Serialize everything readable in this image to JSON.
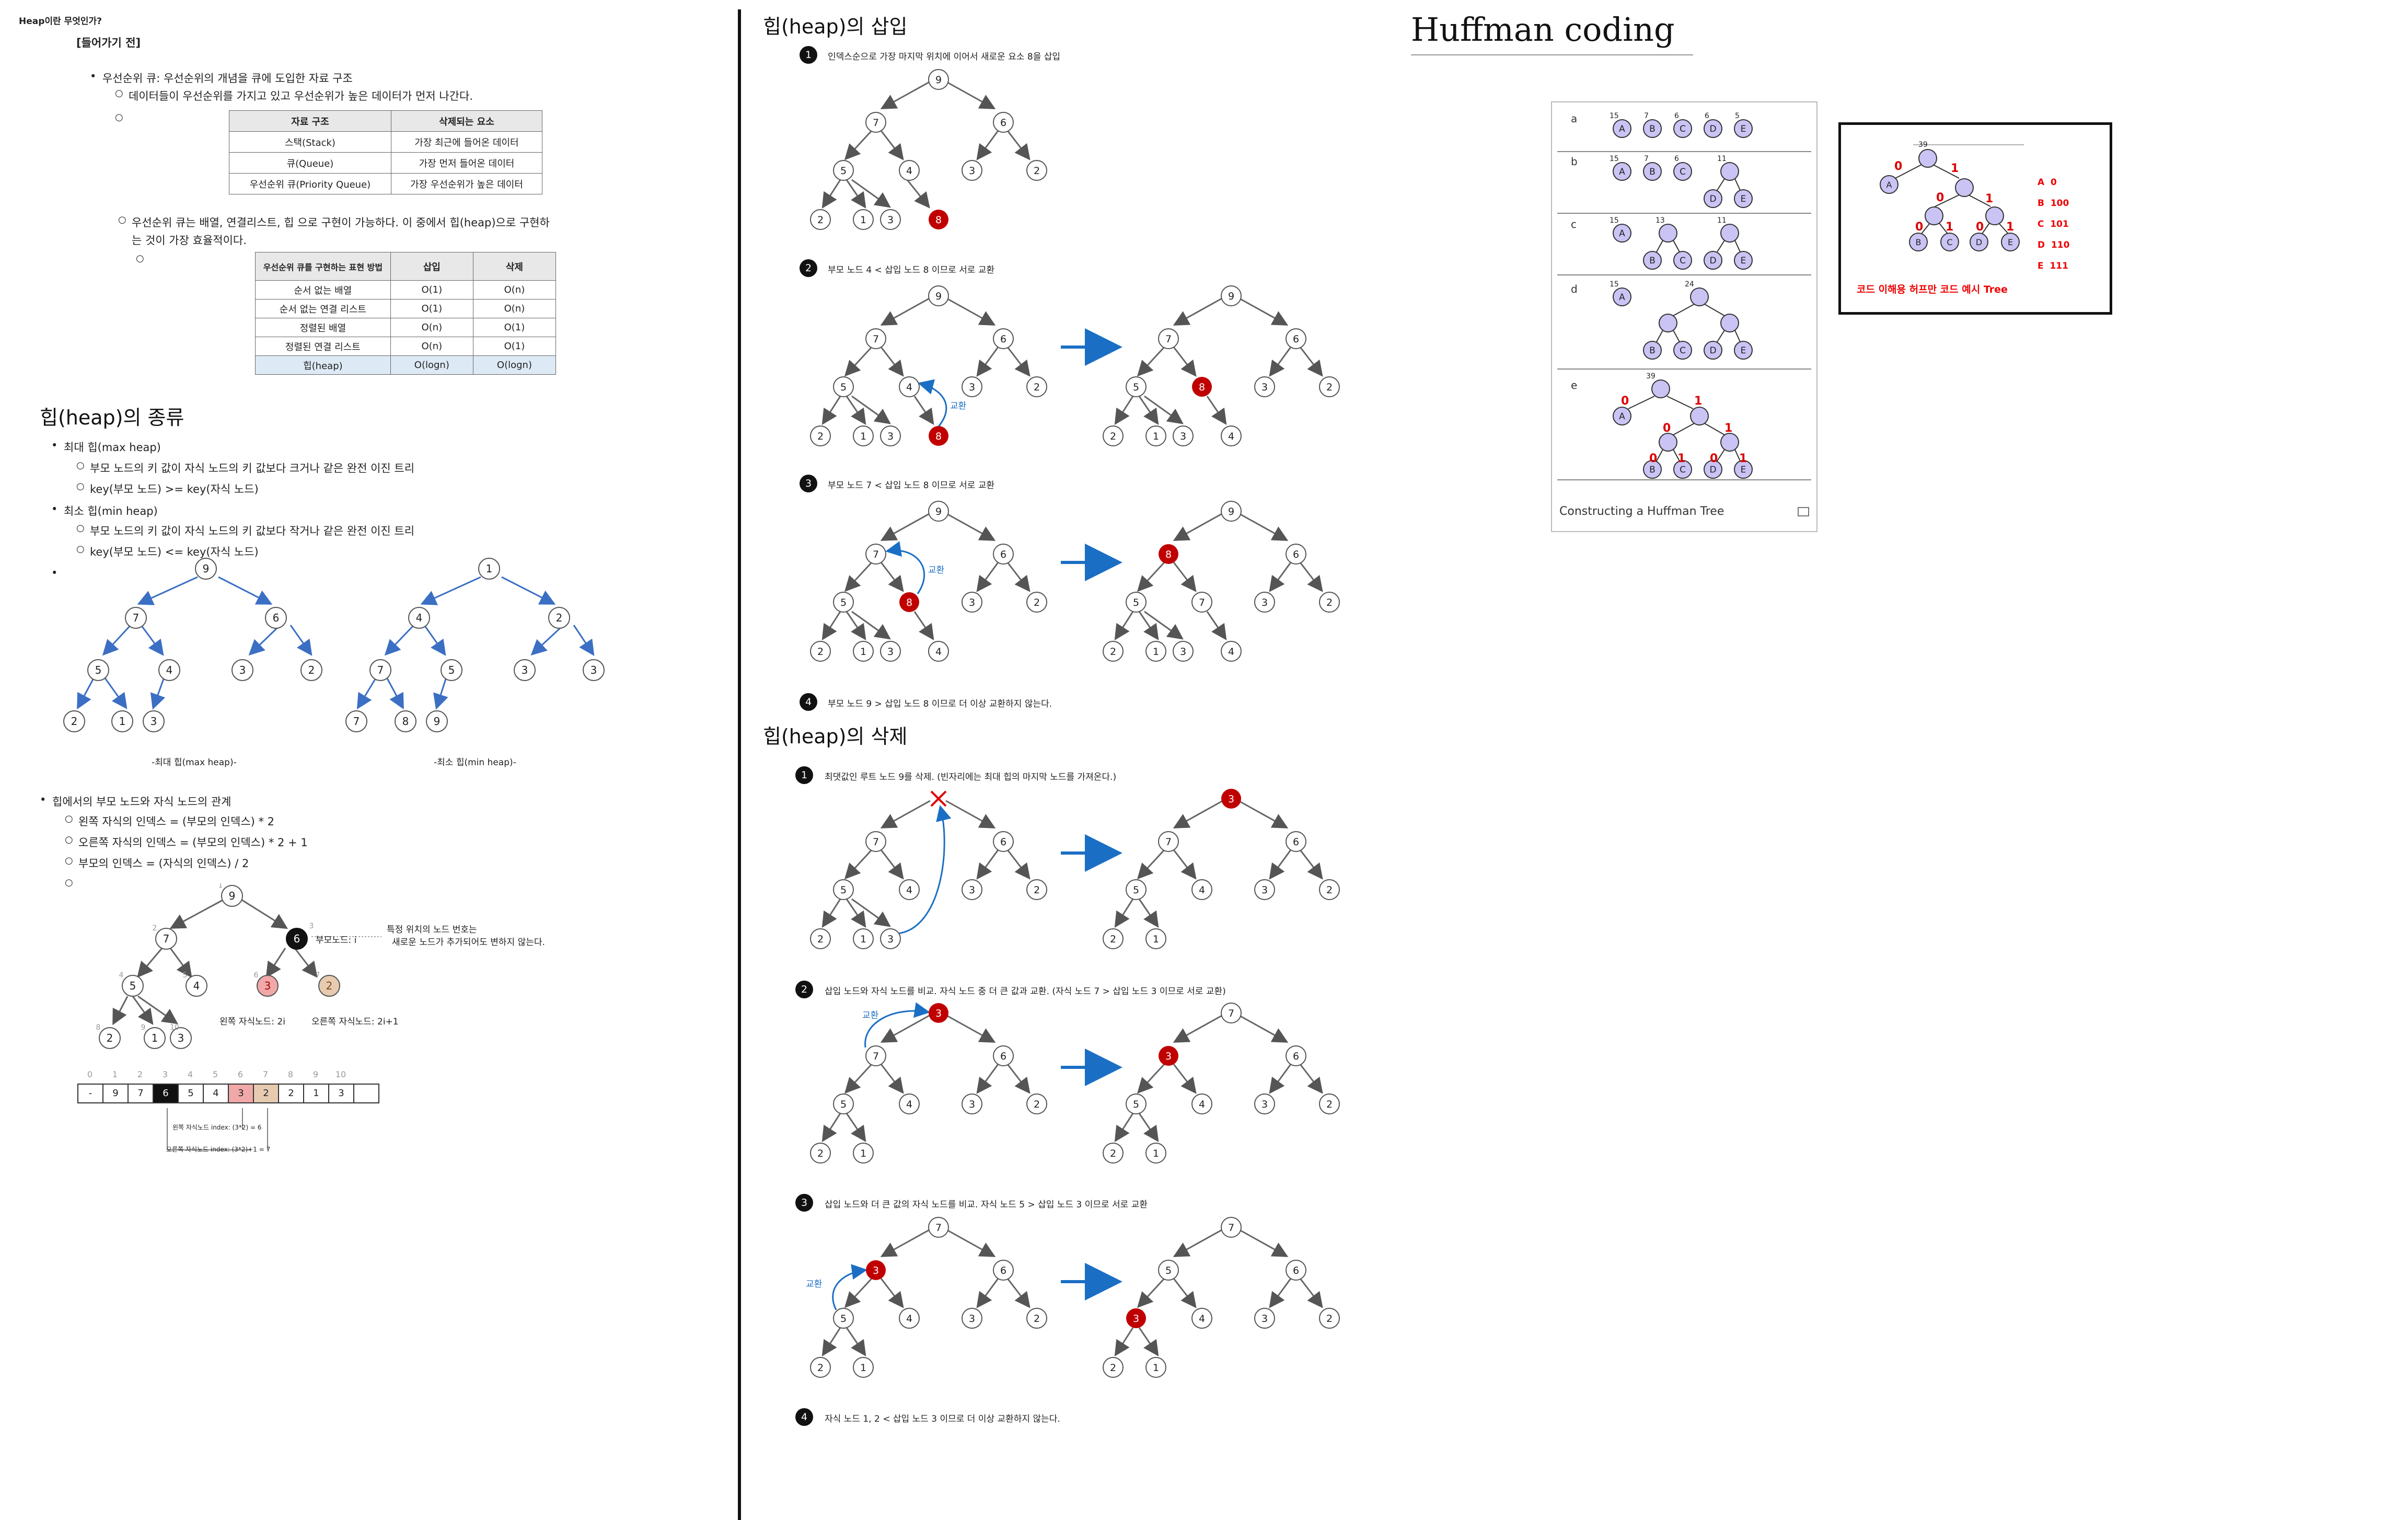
{
  "left": {
    "title": "Heap이란 무엇인가?",
    "intro_tag": "[들어가기 전]",
    "pq_def": "우선순위 큐: 우선순위의 개념을 큐에 도입한 자료 구조",
    "pq_sub": "데이터들이 우선순위를 가지고 있고 우선순위가 높은 데이터가 먼저 나간다.",
    "table1": {
      "headers": [
        "자료 구조",
        "삭제되는 요소"
      ],
      "rows": [
        [
          "스택(Stack)",
          "가장 최근에 들어온 데이터"
        ],
        [
          "큐(Queue)",
          "가장 먼저 들어온 데이터"
        ],
        [
          "우선순위 큐(Priority Queue)",
          "가장 우선순위가 높은 데이터"
        ]
      ]
    },
    "pq_impl_1": "우선순위 큐는 배열, 연결리스트, 힙 으로 구현이 가능하다. 이 중에서 힙(heap)으로 구현하",
    "pq_impl_2": "는 것이 가장 효율적이다.",
    "table2": {
      "headers": [
        "우선순위 큐를 구현하는 표현 방법",
        "삽입",
        "삭제"
      ],
      "rows": [
        [
          "순서 없는 배열",
          "O(1)",
          "O(n)"
        ],
        [
          "순서 없는 연결 리스트",
          "O(1)",
          "O(n)"
        ],
        [
          "정렬된 배열",
          "O(n)",
          "O(1)"
        ],
        [
          "정렬된 연결 리스트",
          "O(n)",
          "O(1)"
        ],
        [
          "힙(heap)",
          "O(logn)",
          "O(logn)"
        ]
      ]
    },
    "types_title": "힙(heap)의 종류",
    "max_heap": "최대 힙(max heap)",
    "max_heap_desc": "부모 노드의 키 값이 자식 노드의 키 값보다 크거나 같은 완전 이진 트리",
    "max_heap_key": "key(부모 노드) >= key(자식 노드)",
    "min_heap": "최소 힙(min heap)",
    "min_heap_desc": "부모 노드의 키 값이 자식 노드의 키 값보다 작거나 같은 완전 이진 트리",
    "min_heap_key": "key(부모 노드) <= key(자식 노드)",
    "max_caption": "-최대 힙(max heap)-",
    "min_caption": "-최소 힙(min heap)-",
    "relation_title": "힙에서의 부모 노드와 자식 노드의 관계",
    "rel_left": "왼쪽 자식의 인덱스 = (부모의 인덱스) * 2",
    "rel_right": "오른쪽 자식의 인덱스 = (부모의 인덱스) * 2 + 1",
    "rel_parent": "부모의 인덱스 = (자식의 인덱스) / 2",
    "parent_label": "부모노드: i",
    "note_1": "특정 위치의 노드 번호는",
    "note_2": "새로운 노드가 추가되어도 변하지 않는다.",
    "left_child_label": "왼쪽 자식노드: 2i",
    "right_child_label": "오른쪽 자식노드: 2i+1",
    "array_indices": [
      "0",
      "1",
      "2",
      "3",
      "4",
      "5",
      "6",
      "7",
      "8",
      "9",
      "10"
    ],
    "array_values": [
      "-",
      "9",
      "7",
      "6",
      "5",
      "4",
      "3",
      "2",
      "2",
      "1",
      "3",
      ""
    ],
    "arr_note_left": "왼쪽 자식노드 index: (3*2) = 6",
    "arr_note_right": "오른쪽 자식노드 index: (3*2)+1 = 7"
  },
  "insert": {
    "title": "힙(heap)의 삽입",
    "step1": "인덱스순으로 가장 마지막 위치에 이어서 새로운 요소 8을 삽입",
    "step2": "부모 노드 4 < 삽입 노드 8 이므로 서로 교환",
    "step3": "부모 노드 7 < 삽입 노드 8 이므로 서로 교환",
    "step4": "부모 노드 9 > 삽입 노드 8 이므로 더 이상 교환하지 않는다.",
    "swap": "교환",
    "nums": [
      "1",
      "2",
      "3",
      "4"
    ]
  },
  "delete": {
    "title": "힙(heap)의 삭제",
    "step1": "최댓값인 루트 노드 9를 삭제. (빈자리에는 최대 힙의 마지막 노드를 가져온다.)",
    "step2": "삽입 노드와 자식 노드를 비교. 자식 노드 중 더 큰 값과 교환. (자식 노드 7 > 삽입 노드 3 이므로 서로 교환)",
    "step3": "삽입 노드와 더 큰 값의 자식 노드를 비교. 자식 노드 5 > 삽입 노드 3 이므로 서로 교환",
    "step4": "자식 노드 1, 2 < 삽입 노드 3 이므로 더 이상 교환하지 않는다.",
    "swap": "교환",
    "nums": [
      "1",
      "2",
      "3",
      "4"
    ]
  },
  "huffman": {
    "title": "Huffman coding",
    "caption": "Constructing a Huffman Tree",
    "stage_labels": [
      "a",
      "b",
      "c",
      "d",
      "e"
    ],
    "symbols": [
      "A",
      "B",
      "C",
      "D",
      "E"
    ],
    "weights_a": [
      "15",
      "7",
      "6",
      "6",
      "5"
    ],
    "w_b": [
      "15",
      "7",
      "6",
      "11"
    ],
    "w_c": [
      "15",
      "13",
      "11"
    ],
    "w_d": [
      "15",
      "24"
    ],
    "w_e": [
      "39"
    ],
    "codes": [
      [
        "A",
        "0"
      ],
      [
        "B",
        "100"
      ],
      [
        "C",
        "101"
      ],
      [
        "D",
        "110"
      ],
      [
        "E",
        "111"
      ]
    ],
    "note": "코드 이해용 허프만 코드 예시 Tree",
    "zero": "0",
    "one": "1"
  },
  "colors": {
    "red_node": "#c00000",
    "blue_arrow": "#1a6fc4",
    "lavender": "#c9c4f4"
  }
}
